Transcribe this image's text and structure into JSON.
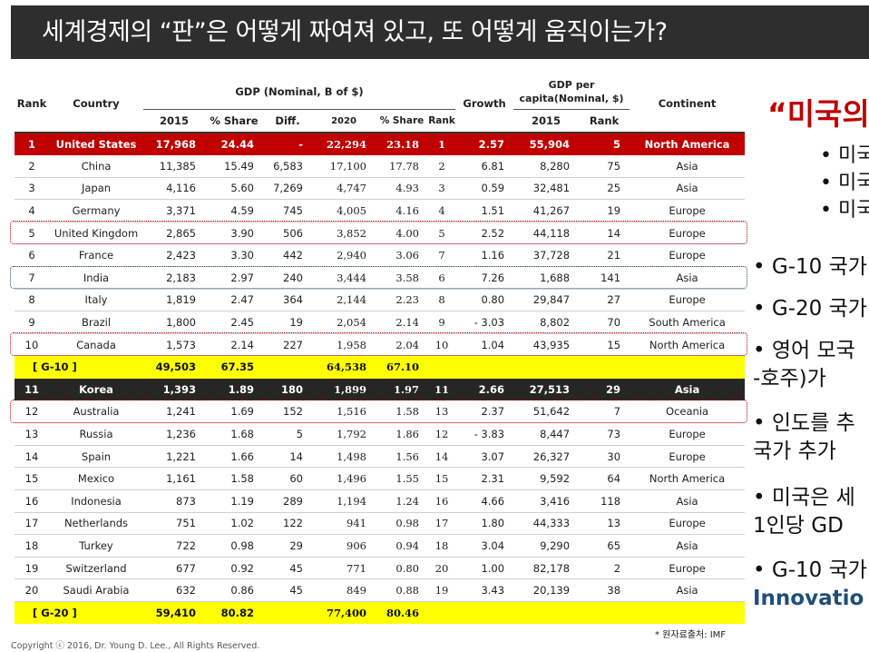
{
  "title": "세계경제의 “판”은 어떻게 짜여져 있고, 또 어떻게 움직이는가?",
  "table": {
    "headers": {
      "rank": "Rank",
      "country": "Country",
      "gdp_group": "GDP (Nominal, B of $)",
      "growth": "Growth",
      "percap_group": "GDP per capita(Nominal, $)",
      "continent": "Continent",
      "gdp2015": "2015",
      "share": "% Share",
      "diff": "Diff.",
      "gdp2020": "2020",
      "share2020": "% Share",
      "rank2020": "Rank",
      "pc2015": "2015",
      "pcrank": "Rank"
    },
    "rows": [
      {
        "rank": "1",
        "country": "United States",
        "gdp": "17,968",
        "share": "24.44",
        "diff": "-",
        "gdp20": "22,294",
        "share20": "23.18",
        "rank20": "1",
        "growth": "2.57",
        "pc": "55,904",
        "pcrank": "5",
        "continent": "North America",
        "style": "us"
      },
      {
        "rank": "2",
        "country": "China",
        "gdp": "11,385",
        "share": "15.49",
        "diff": "6,583",
        "gdp20": "17,100",
        "share20": "17.78",
        "rank20": "2",
        "growth": "6.81",
        "pc": "8,280",
        "pcrank": "75",
        "continent": "Asia"
      },
      {
        "rank": "3",
        "country": "Japan",
        "gdp": "4,116",
        "share": "5.60",
        "diff": "7,269",
        "gdp20": "4,747",
        "share20": "4.93",
        "rank20": "3",
        "growth": "0.59",
        "pc": "32,481",
        "pcrank": "25",
        "continent": "Asia"
      },
      {
        "rank": "4",
        "country": "Germany",
        "gdp": "3,371",
        "share": "4.59",
        "diff": "745",
        "gdp20": "4,005",
        "share20": "4.16",
        "rank20": "4",
        "growth": "1.51",
        "pc": "41,267",
        "pcrank": "19",
        "continent": "Europe"
      },
      {
        "rank": "5",
        "country": "United Kingdom",
        "gdp": "2,865",
        "share": "3.90",
        "diff": "506",
        "gdp20": "3,852",
        "share20": "4.00",
        "rank20": "5",
        "growth": "2.52",
        "pc": "44,118",
        "pcrank": "14",
        "continent": "Europe"
      },
      {
        "rank": "6",
        "country": "France",
        "gdp": "2,423",
        "share": "3.30",
        "diff": "442",
        "gdp20": "2,940",
        "share20": "3.06",
        "rank20": "7",
        "growth": "1.16",
        "pc": "37,728",
        "pcrank": "21",
        "continent": "Europe"
      },
      {
        "rank": "7",
        "country": "India",
        "gdp": "2,183",
        "share": "2.97",
        "diff": "240",
        "gdp20": "3,444",
        "share20": "3.58",
        "rank20": "6",
        "growth": "7.26",
        "pc": "1,688",
        "pcrank": "141",
        "continent": "Asia"
      },
      {
        "rank": "8",
        "country": "Italy",
        "gdp": "1,819",
        "share": "2.47",
        "diff": "364",
        "gdp20": "2,144",
        "share20": "2.23",
        "rank20": "8",
        "growth": "0.80",
        "pc": "29,847",
        "pcrank": "27",
        "continent": "Europe"
      },
      {
        "rank": "9",
        "country": "Brazil",
        "gdp": "1,800",
        "share": "2.45",
        "diff": "19",
        "gdp20": "2,054",
        "share20": "2.14",
        "rank20": "9",
        "growth": "-  3.03",
        "pc": "8,802",
        "pcrank": "70",
        "continent": "South America"
      },
      {
        "rank": "10",
        "country": "Canada",
        "gdp": "1,573",
        "share": "2.14",
        "diff": "227",
        "gdp20": "1,958",
        "share20": "2.04",
        "rank20": "10",
        "growth": "1.04",
        "pc": "43,935",
        "pcrank": "15",
        "continent": "North America"
      },
      {
        "rank": "[ G-10 ]",
        "country": "",
        "gdp": "49,503",
        "share": "67.35",
        "diff": "",
        "gdp20": "64,538",
        "share20": "67.10",
        "rank20": "",
        "growth": "",
        "pc": "",
        "pcrank": "",
        "continent": "",
        "style": "sum"
      },
      {
        "rank": "11",
        "country": "Korea",
        "gdp": "1,393",
        "share": "1.89",
        "diff": "180",
        "gdp20": "1,899",
        "share20": "1.97",
        "rank20": "11",
        "growth": "2.66",
        "pc": "27,513",
        "pcrank": "29",
        "continent": "Asia",
        "style": "korea"
      },
      {
        "rank": "12",
        "country": "Australia",
        "gdp": "1,241",
        "share": "1.69",
        "diff": "152",
        "gdp20": "1,516",
        "share20": "1.58",
        "rank20": "13",
        "growth": "2.37",
        "pc": "51,642",
        "pcrank": "7",
        "continent": "Oceania"
      },
      {
        "rank": "13",
        "country": "Russia",
        "gdp": "1,236",
        "share": "1.68",
        "diff": "5",
        "gdp20": "1,792",
        "share20": "1.86",
        "rank20": "12",
        "growth": "-  3.83",
        "pc": "8,447",
        "pcrank": "73",
        "continent": "Europe"
      },
      {
        "rank": "14",
        "country": "Spain",
        "gdp": "1,221",
        "share": "1.66",
        "diff": "14",
        "gdp20": "1,498",
        "share20": "1.56",
        "rank20": "14",
        "growth": "3.07",
        "pc": "26,327",
        "pcrank": "30",
        "continent": "Europe"
      },
      {
        "rank": "15",
        "country": "Mexico",
        "gdp": "1,161",
        "share": "1.58",
        "diff": "60",
        "gdp20": "1,496",
        "share20": "1.55",
        "rank20": "15",
        "growth": "2.31",
        "pc": "9,592",
        "pcrank": "64",
        "continent": "North America"
      },
      {
        "rank": "16",
        "country": "Indonesia",
        "gdp": "873",
        "share": "1.19",
        "diff": "289",
        "gdp20": "1,194",
        "share20": "1.24",
        "rank20": "16",
        "growth": "4.66",
        "pc": "3,416",
        "pcrank": "118",
        "continent": "Asia"
      },
      {
        "rank": "17",
        "country": "Netherlands",
        "gdp": "751",
        "share": "1.02",
        "diff": "122",
        "gdp20": "941",
        "share20": "0.98",
        "rank20": "17",
        "growth": "1.80",
        "pc": "44,333",
        "pcrank": "13",
        "continent": "Europe"
      },
      {
        "rank": "18",
        "country": "Turkey",
        "gdp": "722",
        "share": "0.98",
        "diff": "29",
        "gdp20": "906",
        "share20": "0.94",
        "rank20": "18",
        "growth": "3.04",
        "pc": "9,290",
        "pcrank": "65",
        "continent": "Asia"
      },
      {
        "rank": "19",
        "country": "Switzerland",
        "gdp": "677",
        "share": "0.92",
        "diff": "45",
        "gdp20": "771",
        "share20": "0.80",
        "rank20": "20",
        "growth": "1.00",
        "pc": "82,178",
        "pcrank": "2",
        "continent": "Europe"
      },
      {
        "rank": "20",
        "country": "Saudi Arabia",
        "gdp": "632",
        "share": "0.86",
        "diff": "45",
        "gdp20": "849",
        "share20": "0.88",
        "rank20": "19",
        "growth": "3.43",
        "pc": "20,139",
        "pcrank": "38",
        "continent": "Asia"
      },
      {
        "rank": "[ G-20 ]",
        "country": "",
        "gdp": "59,410",
        "share": "80.82",
        "diff": "",
        "gdp20": "77,400",
        "share20": "80.46",
        "rank20": "",
        "growth": "",
        "pc": "",
        "pcrank": "",
        "continent": "",
        "style": "sum"
      }
    ]
  },
  "right_panel": {
    "quote": "“미국의",
    "sub_items": [
      "• 미국",
      "• 미국",
      "• 미국"
    ],
    "items": [
      "• G-10 국가",
      "• G-20 국가",
      "• 영어 모국",
      "  -호주)가 ",
      "• 인도를 추",
      "  국가 추가",
      "• 미국은 세",
      "  1인당 GD",
      "• G-10 국가",
      "  Innovatio"
    ]
  },
  "footer": {
    "copyright": "Copyright ⓒ 2016, Dr. Young D. Lee., All Rights Reserved.",
    "source": "* 원자료출처:  IMF"
  },
  "colors": {
    "title_bg": "#2e2e2e",
    "us_row": "#c00000",
    "summary_row": "#ffff00",
    "korea_row": "#262626",
    "outline_red": "#c00000",
    "outline_blue": "#1f4e79",
    "accent_blue": "#1f4e79"
  }
}
